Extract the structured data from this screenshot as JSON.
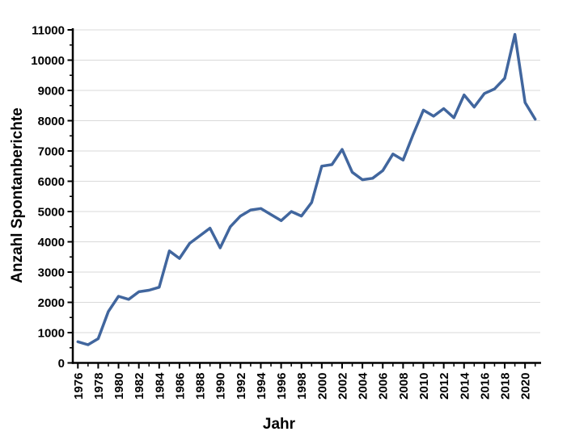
{
  "chart_data": {
    "type": "line",
    "title": "",
    "xlabel": "Jahr",
    "ylabel": "Anzahl Spontanberichte",
    "x": [
      1976,
      1977,
      1978,
      1979,
      1980,
      1981,
      1982,
      1983,
      1984,
      1985,
      1986,
      1987,
      1988,
      1989,
      1990,
      1991,
      1992,
      1993,
      1994,
      1995,
      1996,
      1997,
      1998,
      1999,
      2000,
      2001,
      2002,
      2003,
      2004,
      2005,
      2006,
      2007,
      2008,
      2009,
      2010,
      2011,
      2012,
      2013,
      2014,
      2015,
      2016,
      2017,
      2018,
      2019,
      2020,
      2021
    ],
    "series": [
      {
        "name": "Anzahl Spontanberichte",
        "values": [
          700,
          600,
          800,
          1700,
          2200,
          2100,
          2350,
          2400,
          2500,
          3700,
          3450,
          3950,
          4200,
          4450,
          3800,
          4500,
          4850,
          5050,
          5100,
          4900,
          4700,
          5000,
          4850,
          5300,
          6500,
          6550,
          7050,
          6300,
          6050,
          6100,
          6350,
          6900,
          6700,
          7550,
          8350,
          8150,
          8400,
          8100,
          8850,
          8450,
          8900,
          9050,
          9400,
          10850,
          8600,
          8050
        ]
      }
    ],
    "ylim": [
      0,
      11000
    ],
    "y_tick_step": 1000,
    "y_minor_tick_step": 500,
    "x_tick_every_years": 1,
    "x_label_step": 2,
    "y_tick_labels": [
      "0",
      "1000",
      "2000",
      "3000",
      "4000",
      "5000",
      "6000",
      "7000",
      "8000",
      "9000",
      "10000",
      "11000"
    ],
    "grid": true,
    "legend": "none",
    "line_color": "#41669E",
    "grid_color": "#D9D9D9",
    "axis_color": "#000000",
    "background_color": "#FFFFFF"
  }
}
